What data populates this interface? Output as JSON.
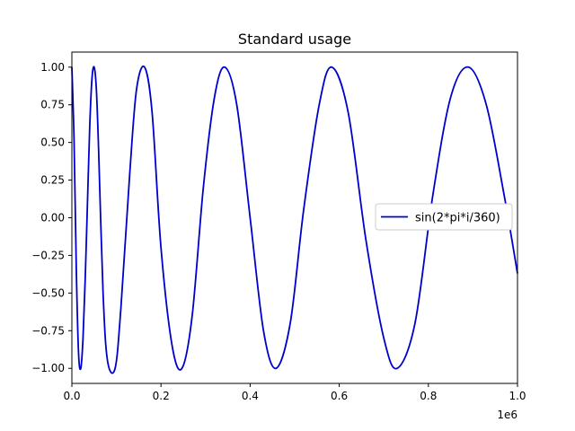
{
  "chart_data": {
    "type": "line",
    "title": "Standard usage",
    "xlabel": "",
    "ylabel": "",
    "xlim": [
      0,
      1000000
    ],
    "ylim": [
      -1.1,
      1.1
    ],
    "x_offset_label": "1e6",
    "xticks": [
      {
        "value": 0,
        "label": "0.0"
      },
      {
        "value": 200000,
        "label": "0.2"
      },
      {
        "value": 400000,
        "label": "0.4"
      },
      {
        "value": 600000,
        "label": "0.6"
      },
      {
        "value": 800000,
        "label": "0.8"
      },
      {
        "value": 1000000,
        "label": "1.0"
      }
    ],
    "yticks": [
      {
        "value": 1.0,
        "label": "1.00"
      },
      {
        "value": 0.75,
        "label": "0.75"
      },
      {
        "value": 0.5,
        "label": "0.50"
      },
      {
        "value": 0.25,
        "label": "0.25"
      },
      {
        "value": 0.0,
        "label": "0.00"
      },
      {
        "value": -0.25,
        "label": "−0.25"
      },
      {
        "value": -0.5,
        "label": "−0.50"
      },
      {
        "value": -0.75,
        "label": "−0.75"
      },
      {
        "value": -1.0,
        "label": "−1.00"
      }
    ],
    "grid": false,
    "legend": "center-right",
    "series": [
      {
        "name": "sin(2*pi*i/360)",
        "color": "#0000cc",
        "points": [
          [
            0,
            1.0
          ],
          [
            5000,
            0.5
          ],
          [
            10000,
            -0.35
          ],
          [
            15000,
            -0.9
          ],
          [
            20000,
            -1.0
          ],
          [
            25000,
            -0.8
          ],
          [
            30000,
            -0.4
          ],
          [
            35000,
            0.1
          ],
          [
            40000,
            0.6
          ],
          [
            45000,
            0.92
          ],
          [
            50000,
            1.0
          ],
          [
            55000,
            0.85
          ],
          [
            60000,
            0.45
          ],
          [
            70000,
            -0.5
          ],
          [
            80000,
            -0.95
          ],
          [
            97000,
            -1.0
          ],
          [
            110000,
            -0.6
          ],
          [
            130000,
            0.3
          ],
          [
            145000,
            0.85
          ],
          [
            163000,
            1.0
          ],
          [
            180000,
            0.7
          ],
          [
            200000,
            -0.2
          ],
          [
            225000,
            -0.85
          ],
          [
            247000,
            -1.0
          ],
          [
            270000,
            -0.65
          ],
          [
            295000,
            0.2
          ],
          [
            320000,
            0.8
          ],
          [
            343000,
            1.0
          ],
          [
            370000,
            0.75
          ],
          [
            400000,
            0.0
          ],
          [
            430000,
            -0.75
          ],
          [
            458000,
            -1.0
          ],
          [
            490000,
            -0.7
          ],
          [
            520000,
            0.05
          ],
          [
            555000,
            0.75
          ],
          [
            583000,
            1.0
          ],
          [
            620000,
            0.7
          ],
          [
            660000,
            -0.15
          ],
          [
            700000,
            -0.8
          ],
          [
            730000,
            -1.0
          ],
          [
            770000,
            -0.7
          ],
          [
            810000,
            0.15
          ],
          [
            850000,
            0.8
          ],
          [
            890000,
            1.0
          ],
          [
            930000,
            0.75
          ],
          [
            970000,
            0.15
          ],
          [
            1000000,
            -0.37
          ]
        ]
      }
    ]
  }
}
